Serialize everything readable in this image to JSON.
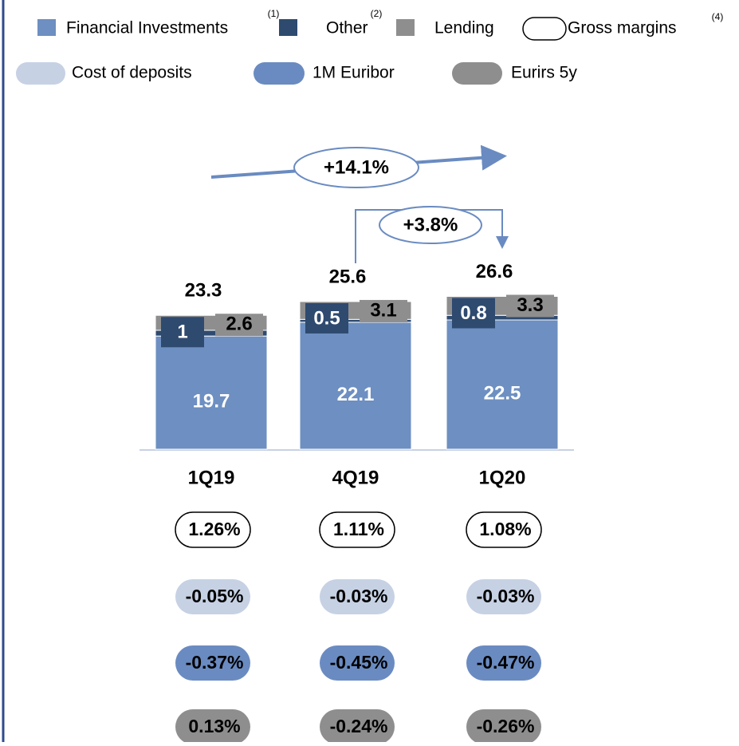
{
  "chart_data": {
    "type": "bar",
    "categories": [
      "1Q19",
      "4Q19",
      "1Q20"
    ],
    "series": [
      {
        "name": "Financial Investments",
        "note": "(1)",
        "color": "#6d8fc1",
        "values": [
          19.7,
          22.1,
          22.5
        ]
      },
      {
        "name": "Other",
        "note": "(2)",
        "color": "#2e4a6f",
        "values": [
          1.0,
          0.5,
          0.8
        ]
      },
      {
        "name": "Lending",
        "color": "#8e8e8e",
        "values": [
          2.6,
          3.1,
          3.3
        ]
      }
    ],
    "totals": [
      23.3,
      25.6,
      26.6
    ],
    "ylim": [
      0,
      30
    ],
    "annotations": [
      "+14.1%",
      "+3.8%"
    ],
    "rows": [
      {
        "name": "Gross margins",
        "note": "(4)",
        "color": "#ffffff",
        "values": [
          1.26,
          1.11,
          1.08
        ],
        "value_labels": [
          "1.26%",
          "1.11%",
          "1.08%"
        ]
      },
      {
        "name": "Cost of deposits",
        "color": "#c6d1e4",
        "values": [
          -0.05,
          -0.03,
          -0.03
        ],
        "value_labels": [
          "-0.05%",
          "-0.03%",
          "-0.03%"
        ]
      },
      {
        "name": "1M Euribor",
        "color": "#6a8bc1",
        "values": [
          -0.37,
          -0.45,
          -0.47
        ],
        "value_labels": [
          "-0.37%",
          "-0.45%",
          "-0.47%"
        ]
      },
      {
        "name": "Eurirs 5y",
        "color": "#8e8e8e",
        "values": [
          0.13,
          -0.24,
          -0.26
        ],
        "value_labels": [
          "0.13%",
          "-0.24%",
          "-0.26%"
        ]
      }
    ]
  }
}
